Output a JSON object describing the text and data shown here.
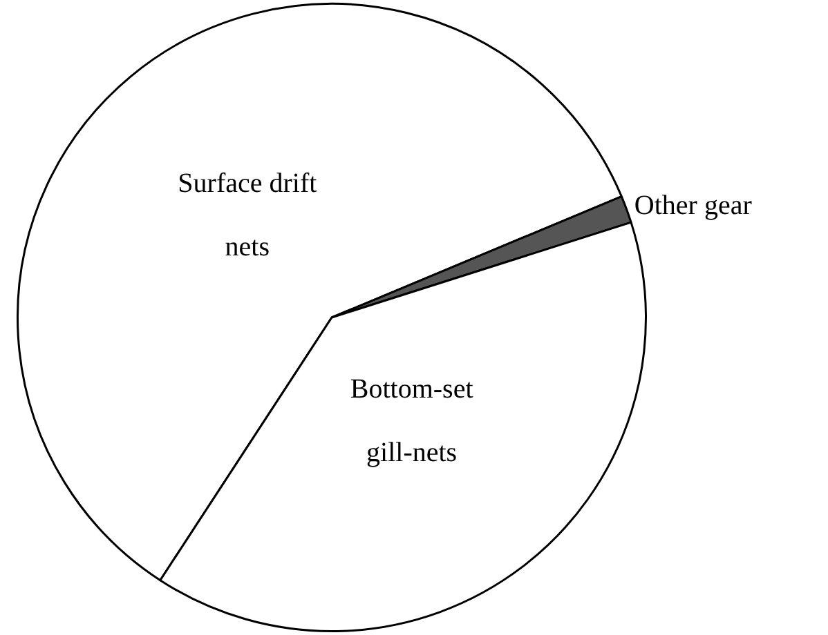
{
  "chart_data": {
    "type": "pie",
    "categories": [
      "Surface drift nets",
      "Other gear",
      "Bottom-set gill-nets"
    ],
    "values": [
      59.5,
      1.4,
      39.1
    ],
    "colors": [
      "#ffffff",
      "#555555",
      "#ffffff"
    ],
    "legend": false
  }
}
